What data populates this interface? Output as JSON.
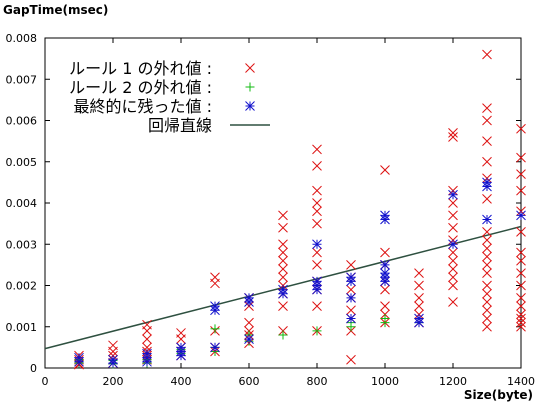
{
  "chart_data": {
    "type": "scatter",
    "ylabel": "GapTime(msec)",
    "xlabel": "Size(byte)",
    "xlim": [
      0,
      1400
    ],
    "ylim": [
      0,
      0.008
    ],
    "xticks": [
      "0",
      "200",
      "400",
      "600",
      "800",
      "1000",
      "1200",
      "1400"
    ],
    "yticks": [
      "0",
      "0.001",
      "0.002",
      "0.003",
      "0.004",
      "0.005",
      "0.006",
      "0.007",
      "0.008"
    ],
    "legend_position": "top-left",
    "legend": [
      {
        "label": "ルール 1 の外れ値 :",
        "marker": "x",
        "color": "#dd1111"
      },
      {
        "label": "ルール 2 の外れ値 :",
        "marker": "+",
        "color": "#11bb11"
      },
      {
        "label": "最終的に残った値 :",
        "marker": "*",
        "color": "#1111cc"
      },
      {
        "label": "回帰直線",
        "marker": "line",
        "color": "#2e5040"
      }
    ],
    "regression_line": {
      "x": [
        0,
        1400
      ],
      "y": [
        0.00047,
        0.00343
      ]
    },
    "series": [
      {
        "name": "ルール 1 の外れ値",
        "marker": "x",
        "color": "#dd1111",
        "points": [
          [
            100,
            0.0003
          ],
          [
            100,
            0.0002
          ],
          [
            100,
            0.00015
          ],
          [
            100,
            0.0001
          ],
          [
            100,
            8e-05
          ],
          [
            200,
            0.00055
          ],
          [
            200,
            0.0004
          ],
          [
            200,
            0.0003
          ],
          [
            200,
            0.0002
          ],
          [
            200,
            0.00012
          ],
          [
            300,
            0.00105
          ],
          [
            300,
            0.0009
          ],
          [
            300,
            0.0007
          ],
          [
            300,
            0.0005
          ],
          [
            300,
            0.0004
          ],
          [
            300,
            0.0003
          ],
          [
            300,
            0.0002
          ],
          [
            400,
            0.00085
          ],
          [
            400,
            0.0007
          ],
          [
            400,
            0.0005
          ],
          [
            400,
            0.0004
          ],
          [
            400,
            0.0003
          ],
          [
            500,
            0.0022
          ],
          [
            500,
            0.00205
          ],
          [
            500,
            0.0009
          ],
          [
            500,
            0.0005
          ],
          [
            500,
            0.0004
          ],
          [
            600,
            0.0017
          ],
          [
            600,
            0.0015
          ],
          [
            600,
            0.0011
          ],
          [
            600,
            0.0009
          ],
          [
            600,
            0.0008
          ],
          [
            600,
            0.0006
          ],
          [
            700,
            0.0037
          ],
          [
            700,
            0.0034
          ],
          [
            700,
            0.003
          ],
          [
            700,
            0.0028
          ],
          [
            700,
            0.0026
          ],
          [
            700,
            0.0024
          ],
          [
            700,
            0.0022
          ],
          [
            700,
            0.002
          ],
          [
            700,
            0.0018
          ],
          [
            700,
            0.0015
          ],
          [
            700,
            0.0009
          ],
          [
            800,
            0.0053
          ],
          [
            800,
            0.0049
          ],
          [
            800,
            0.0043
          ],
          [
            800,
            0.004
          ],
          [
            800,
            0.0038
          ],
          [
            800,
            0.0035
          ],
          [
            800,
            0.0028
          ],
          [
            800,
            0.0025
          ],
          [
            800,
            0.0021
          ],
          [
            800,
            0.0019
          ],
          [
            800,
            0.0015
          ],
          [
            800,
            0.0009
          ],
          [
            900,
            0.0025
          ],
          [
            900,
            0.0022
          ],
          [
            900,
            0.0019
          ],
          [
            900,
            0.0017
          ],
          [
            900,
            0.0014
          ],
          [
            900,
            0.0012
          ],
          [
            900,
            0.0009
          ],
          [
            900,
            0.0002
          ],
          [
            1000,
            0.0048
          ],
          [
            1000,
            0.0028
          ],
          [
            1000,
            0.0025
          ],
          [
            1000,
            0.0021
          ],
          [
            1000,
            0.0019
          ],
          [
            1000,
            0.0015
          ],
          [
            1000,
            0.0013
          ],
          [
            1000,
            0.0011
          ],
          [
            1100,
            0.0023
          ],
          [
            1100,
            0.002
          ],
          [
            1100,
            0.0017
          ],
          [
            1100,
            0.0015
          ],
          [
            1100,
            0.0013
          ],
          [
            1100,
            0.0011
          ],
          [
            1200,
            0.0057
          ],
          [
            1200,
            0.0056
          ],
          [
            1200,
            0.0043
          ],
          [
            1200,
            0.004
          ],
          [
            1200,
            0.0037
          ],
          [
            1200,
            0.0034
          ],
          [
            1200,
            0.0031
          ],
          [
            1200,
            0.0028
          ],
          [
            1200,
            0.0026
          ],
          [
            1200,
            0.0024
          ],
          [
            1200,
            0.0022
          ],
          [
            1200,
            0.002
          ],
          [
            1200,
            0.0016
          ],
          [
            1300,
            0.0076
          ],
          [
            1300,
            0.0063
          ],
          [
            1300,
            0.006
          ],
          [
            1300,
            0.0055
          ],
          [
            1300,
            0.005
          ],
          [
            1300,
            0.0046
          ],
          [
            1300,
            0.0041
          ],
          [
            1300,
            0.0033
          ],
          [
            1300,
            0.0031
          ],
          [
            1300,
            0.0029
          ],
          [
            1300,
            0.0027
          ],
          [
            1300,
            0.0025
          ],
          [
            1300,
            0.0023
          ],
          [
            1300,
            0.002
          ],
          [
            1300,
            0.0018
          ],
          [
            1300,
            0.0016
          ],
          [
            1300,
            0.0014
          ],
          [
            1300,
            0.0012
          ],
          [
            1300,
            0.001
          ],
          [
            1400,
            0.0058
          ],
          [
            1400,
            0.0051
          ],
          [
            1400,
            0.0047
          ],
          [
            1400,
            0.0043
          ],
          [
            1400,
            0.0038
          ],
          [
            1400,
            0.0033
          ],
          [
            1400,
            0.0028
          ],
          [
            1400,
            0.0026
          ],
          [
            1400,
            0.0023
          ],
          [
            1400,
            0.002
          ],
          [
            1400,
            0.0017
          ],
          [
            1400,
            0.0015
          ],
          [
            1400,
            0.0013
          ],
          [
            1400,
            0.0012
          ],
          [
            1400,
            0.0011
          ],
          [
            1400,
            0.001
          ]
        ]
      },
      {
        "name": "ルール 2 の外れ値",
        "marker": "+",
        "color": "#11bb11",
        "points": [
          [
            100,
            0.0002
          ],
          [
            100,
            0.00012
          ],
          [
            200,
            0.00018
          ],
          [
            200,
            0.0001
          ],
          [
            300,
            0.0002
          ],
          [
            300,
            0.00012
          ],
          [
            400,
            0.00045
          ],
          [
            400,
            0.00035
          ],
          [
            500,
            0.00095
          ],
          [
            500,
            0.0005
          ],
          [
            500,
            0.0004
          ],
          [
            600,
            0.0008
          ],
          [
            600,
            0.00065
          ],
          [
            700,
            0.0008
          ],
          [
            800,
            0.0009
          ],
          [
            900,
            0.0011
          ],
          [
            900,
            0.001
          ],
          [
            1000,
            0.0012
          ],
          [
            1000,
            0.0011
          ],
          [
            1100,
            0.0012
          ],
          [
            1100,
            0.0011
          ]
        ]
      },
      {
        "name": "最終的に残った値",
        "marker": "*",
        "color": "#1111cc",
        "points": [
          [
            100,
            0.00025
          ],
          [
            100,
            0.00015
          ],
          [
            200,
            0.0002
          ],
          [
            200,
            0.00012
          ],
          [
            300,
            0.00035
          ],
          [
            300,
            0.00025
          ],
          [
            300,
            0.00015
          ],
          [
            400,
            0.0005
          ],
          [
            400,
            0.0004
          ],
          [
            400,
            0.0003
          ],
          [
            500,
            0.0015
          ],
          [
            500,
            0.0014
          ],
          [
            500,
            0.0005
          ],
          [
            600,
            0.0017
          ],
          [
            600,
            0.0016
          ],
          [
            600,
            0.0007
          ],
          [
            700,
            0.0019
          ],
          [
            700,
            0.0018
          ],
          [
            800,
            0.003
          ],
          [
            800,
            0.0021
          ],
          [
            800,
            0.002
          ],
          [
            800,
            0.0019
          ],
          [
            900,
            0.0022
          ],
          [
            900,
            0.0021
          ],
          [
            900,
            0.0017
          ],
          [
            900,
            0.0012
          ],
          [
            1000,
            0.0037
          ],
          [
            1000,
            0.0036
          ],
          [
            1000,
            0.0025
          ],
          [
            1000,
            0.0023
          ],
          [
            1000,
            0.0022
          ],
          [
            1000,
            0.0021
          ],
          [
            1100,
            0.0012
          ],
          [
            1100,
            0.0011
          ],
          [
            1200,
            0.0042
          ],
          [
            1200,
            0.003
          ],
          [
            1300,
            0.0045
          ],
          [
            1300,
            0.0044
          ],
          [
            1300,
            0.0036
          ],
          [
            1400,
            0.0037
          ]
        ]
      }
    ]
  }
}
